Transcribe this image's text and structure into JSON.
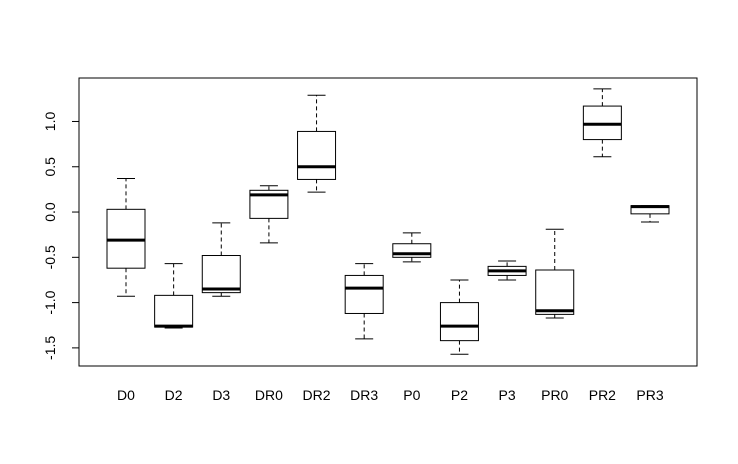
{
  "chart_data": {
    "type": "boxplot",
    "title": "",
    "xlabel": "",
    "ylabel": "",
    "ylim": [
      -1.7,
      1.48
    ],
    "y_ticks": [
      -1.5,
      -1.0,
      -0.5,
      0.0,
      0.5,
      1.0
    ],
    "y_tick_labels": [
      "-1.5",
      "-1.0",
      "-0.5",
      "0.0",
      "0.5",
      "1.0"
    ],
    "grid": false,
    "categories": [
      "D0",
      "D2",
      "D3",
      "DR0",
      "DR2",
      "DR3",
      "P0",
      "P2",
      "P3",
      "PR0",
      "PR2",
      "PR3"
    ],
    "boxes": [
      {
        "category": "D0",
        "min": -0.93,
        "q1": -0.62,
        "median": -0.31,
        "q3": 0.03,
        "max": 0.37
      },
      {
        "category": "D2",
        "min": -1.28,
        "q1": -1.27,
        "median": -1.26,
        "q3": -0.92,
        "max": -0.57
      },
      {
        "category": "D3",
        "min": -0.93,
        "q1": -0.89,
        "median": -0.85,
        "q3": -0.48,
        "max": -0.12
      },
      {
        "category": "DR0",
        "min": -0.34,
        "q1": -0.07,
        "median": 0.19,
        "q3": 0.24,
        "max": 0.29
      },
      {
        "category": "DR2",
        "min": 0.22,
        "q1": 0.36,
        "median": 0.5,
        "q3": 0.89,
        "max": 1.29
      },
      {
        "category": "DR3",
        "min": -1.4,
        "q1": -1.12,
        "median": -0.84,
        "q3": -0.7,
        "max": -0.57
      },
      {
        "category": "P0",
        "min": -0.55,
        "q1": -0.5,
        "median": -0.46,
        "q3": -0.35,
        "max": -0.23
      },
      {
        "category": "P2",
        "min": -1.57,
        "q1": -1.42,
        "median": -1.26,
        "q3": -1.0,
        "max": -0.75
      },
      {
        "category": "P3",
        "min": -0.75,
        "q1": -0.7,
        "median": -0.65,
        "q3": -0.6,
        "max": -0.54
      },
      {
        "category": "PR0",
        "min": -1.17,
        "q1": -1.13,
        "median": -1.09,
        "q3": -0.64,
        "max": -0.19
      },
      {
        "category": "PR2",
        "min": 0.61,
        "q1": 0.8,
        "median": 0.97,
        "q3": 1.17,
        "max": 1.36
      },
      {
        "category": "PR3",
        "min": -0.11,
        "q1": -0.02,
        "median": 0.06,
        "q3": 0.07,
        "max": 0.07
      }
    ]
  }
}
